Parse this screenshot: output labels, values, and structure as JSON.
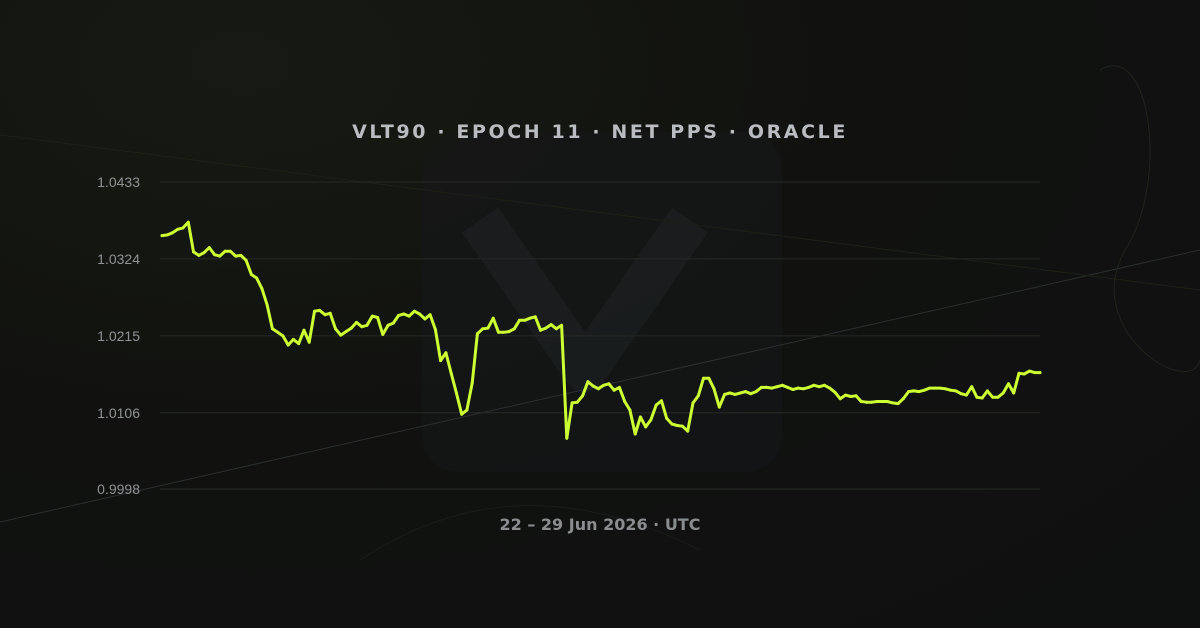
{
  "chart_data": {
    "type": "line",
    "title": "VLT90 · EPOCH 11 · NET PPS · ORACLE",
    "xlabel": "22 – 29 Jun 2026 · UTC",
    "ylabel": "",
    "y_ticks": [
      "1.0433",
      "1.0324",
      "1.0215",
      "1.0106",
      "0.9998"
    ],
    "ylim": [
      0.9998,
      1.0433
    ],
    "grid": true,
    "line_color": "#ccff33",
    "series": [
      {
        "values": [
          1.0357,
          1.0358,
          1.0361,
          1.0366,
          1.0368,
          1.0376,
          1.0334,
          1.0329,
          1.0333,
          1.034,
          1.033,
          1.0328,
          1.0335,
          1.0335,
          1.0328,
          1.0329,
          1.0322,
          1.0302,
          1.0297,
          1.0282,
          1.0259,
          1.0225,
          1.022,
          1.0215,
          1.0202,
          1.021,
          1.0204,
          1.0223,
          1.0206,
          1.025,
          1.0251,
          1.0245,
          1.0247,
          1.0225,
          1.0216,
          1.0221,
          1.0226,
          1.0234,
          1.0228,
          1.023,
          1.0243,
          1.0241,
          1.0217,
          1.023,
          1.0233,
          1.0244,
          1.0246,
          1.0243,
          1.025,
          1.0246,
          1.0239,
          1.0245,
          1.0224,
          1.018,
          1.0191,
          1.0162,
          1.0134,
          1.0104,
          1.011,
          1.0148,
          1.0218,
          1.0225,
          1.0226,
          1.024,
          1.022,
          1.022,
          1.0221,
          1.0225,
          1.0237,
          1.0237,
          1.024,
          1.0242,
          1.0223,
          1.0226,
          1.0231,
          1.0225,
          1.023,
          1.007,
          1.012,
          1.0121,
          1.013,
          1.015,
          1.0144,
          1.014,
          1.0145,
          1.0147,
          1.0138,
          1.0142,
          1.0122,
          1.011,
          1.0076,
          1.01,
          1.0086,
          1.0096,
          1.0117,
          1.0123,
          1.0098,
          1.009,
          1.0088,
          1.0087,
          1.008,
          1.012,
          1.013,
          1.0155,
          1.0155,
          1.014,
          1.0114,
          1.0132,
          1.0134,
          1.0132,
          1.0134,
          1.0136,
          1.0133,
          1.0136,
          1.0142,
          1.0142,
          1.0141,
          1.0143,
          1.0145,
          1.0142,
          1.0139,
          1.0141,
          1.014,
          1.0142,
          1.0145,
          1.0143,
          1.0145,
          1.0141,
          1.0135,
          1.0126,
          1.0131,
          1.0129,
          1.013,
          1.0122,
          1.0121,
          1.0121,
          1.0122,
          1.0122,
          1.0122,
          1.012,
          1.0119,
          1.0126,
          1.0136,
          1.0137,
          1.0136,
          1.0138,
          1.0141,
          1.0141,
          1.0141,
          1.014,
          1.0138,
          1.0137,
          1.0133,
          1.0131,
          1.0143,
          1.0128,
          1.0127,
          1.0137,
          1.0128,
          1.0128,
          1.0134,
          1.0147,
          1.0134,
          1.0162,
          1.0161,
          1.0165,
          1.0163,
          1.0163
        ]
      }
    ]
  }
}
